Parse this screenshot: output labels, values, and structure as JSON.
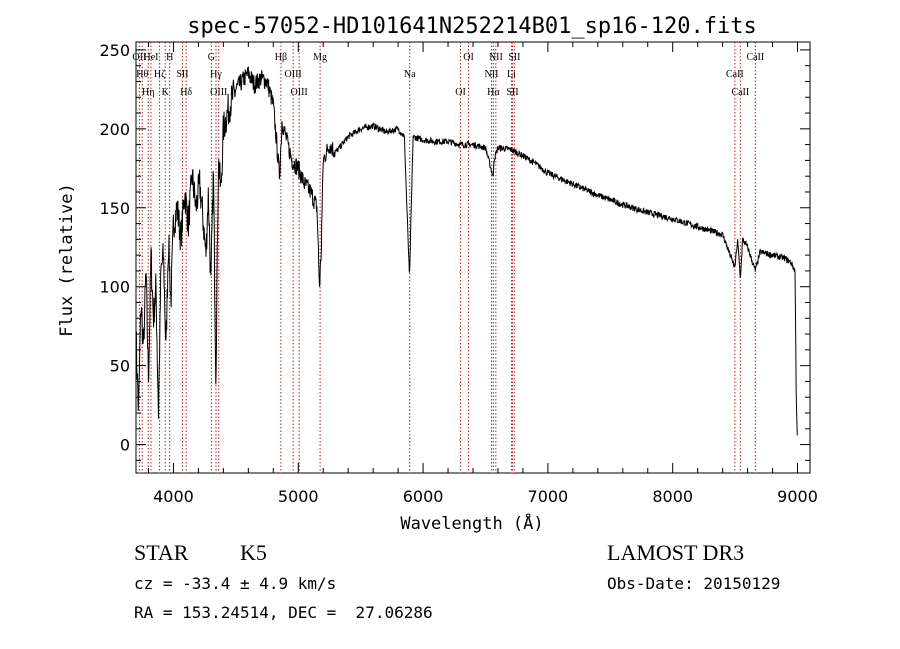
{
  "chart_data": {
    "type": "line",
    "title": "spec-57052-HD101641N252214B01_sp16-120.fits",
    "xlabel": "Wavelength (Å)",
    "ylabel": "Flux (relative)",
    "xlim": [
      3700,
      9100
    ],
    "ylim": [
      -18,
      255
    ],
    "xticks": [
      4000,
      5000,
      6000,
      7000,
      8000,
      9000
    ],
    "yticks": [
      0,
      50,
      100,
      150,
      200,
      250
    ],
    "grid": false,
    "line_color": "#000000",
    "marker_color": "#b22222",
    "series": [
      {
        "x": [
          3700,
          3720,
          3740,
          3760,
          3780,
          3800,
          3820,
          3840,
          3860,
          3880,
          3900,
          3920,
          3940,
          3960,
          3980,
          4000,
          4030,
          4060,
          4090,
          4120,
          4150,
          4180,
          4210,
          4240,
          4260,
          4280,
          4300,
          4320,
          4340,
          4360,
          4380,
          4400,
          4450,
          4500,
          4550,
          4600,
          4650,
          4700,
          4750,
          4800,
          4850,
          4870,
          4900,
          4950,
          5000,
          5050,
          5100,
          5150,
          5170,
          5183,
          5200,
          5250,
          5300,
          5400,
          5500,
          5600,
          5700,
          5800,
          5850,
          5890,
          5893,
          5896,
          5920,
          6000,
          6100,
          6200,
          6300,
          6400,
          6500,
          6560,
          6563,
          6566,
          6600,
          6700,
          6800,
          6900,
          7000,
          7200,
          7400,
          7600,
          7800,
          8000,
          8200,
          8400,
          8498,
          8520,
          8542,
          8560,
          8600,
          8662,
          8700,
          8800,
          8900,
          8950,
          8980,
          8990,
          9000
        ],
        "values": [
          70,
          20,
          90,
          60,
          110,
          40,
          120,
          80,
          100,
          20,
          110,
          120,
          60,
          130,
          90,
          140,
          150,
          130,
          160,
          140,
          170,
          150,
          165,
          140,
          120,
          160,
          100,
          175,
          40,
          180,
          160,
          200,
          215,
          225,
          230,
          235,
          228,
          232,
          230,
          215,
          170,
          205,
          195,
          180,
          175,
          165,
          160,
          150,
          100,
          120,
          180,
          190,
          185,
          195,
          200,
          202,
          198,
          200,
          195,
          108,
          110,
          120,
          195,
          193,
          192,
          192,
          190,
          190,
          188,
          170,
          168,
          180,
          188,
          187,
          183,
          178,
          172,
          165,
          158,
          152,
          147,
          143,
          138,
          133,
          112,
          130,
          105,
          130,
          125,
          110,
          122,
          120,
          118,
          115,
          110,
          30,
          0
        ]
      }
    ],
    "lines": [
      {
        "wavelength": 3727,
        "labels": [
          "OII"
        ]
      },
      {
        "wavelength": 3750,
        "labels": [
          "Hθ"
        ]
      },
      {
        "wavelength": 3798,
        "labels": [
          "Hη"
        ]
      },
      {
        "wavelength": 3820,
        "labels": [
          "HeI"
        ]
      },
      {
        "wavelength": 3889,
        "labels": [
          "Hζ"
        ]
      },
      {
        "wavelength": 3934,
        "labels": [
          "K"
        ]
      },
      {
        "wavelength": 3970,
        "labels": [
          "H"
        ]
      },
      {
        "wavelength": 4072,
        "labels": [
          "SII"
        ]
      },
      {
        "wavelength": 4102,
        "labels": [
          "Hδ"
        ]
      },
      {
        "wavelength": 4304,
        "labels": [
          "G"
        ]
      },
      {
        "wavelength": 4341,
        "labels": [
          "Hγ"
        ]
      },
      {
        "wavelength": 4363,
        "labels": [
          "OIII"
        ]
      },
      {
        "wavelength": 4861,
        "labels": [
          "Hβ"
        ]
      },
      {
        "wavelength": 4959,
        "labels": [
          "OIII"
        ]
      },
      {
        "wavelength": 5007,
        "labels": [
          "OIII"
        ]
      },
      {
        "wavelength": 5175,
        "labels": [
          "Mg"
        ]
      },
      {
        "wavelength": 5893,
        "labels": [
          "Na"
        ]
      },
      {
        "wavelength": 6300,
        "labels": [
          "OI"
        ]
      },
      {
        "wavelength": 6364,
        "labels": [
          "OI"
        ]
      },
      {
        "wavelength": 6548,
        "labels": [
          "NII"
        ]
      },
      {
        "wavelength": 6563,
        "labels": [
          "Hα"
        ]
      },
      {
        "wavelength": 6583,
        "labels": [
          "NII"
        ]
      },
      {
        "wavelength": 6708,
        "labels": [
          "Li"
        ]
      },
      {
        "wavelength": 6716,
        "labels": [
          "SII"
        ]
      },
      {
        "wavelength": 6731,
        "labels": [
          "SII"
        ]
      },
      {
        "wavelength": 8498,
        "labels": [
          "CaII"
        ]
      },
      {
        "wavelength": 8542,
        "labels": [
          "CaII"
        ]
      },
      {
        "wavelength": 8662,
        "labels": [
          "CaII"
        ]
      }
    ]
  },
  "info": {
    "object_class": "STAR",
    "subclass": "K5",
    "survey": "LAMOST DR3",
    "redshift": "cz = -33.4 ± 4.9 km/s",
    "obs_date": "Obs-Date: 20150129",
    "coords": "RA = 153.24514, DEC =  27.06286"
  }
}
